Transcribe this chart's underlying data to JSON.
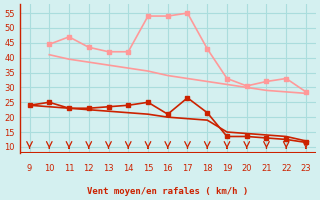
{
  "x_all": [
    9,
    10,
    11,
    12,
    13,
    14,
    15,
    16,
    17,
    18,
    19,
    20,
    21,
    22,
    23
  ],
  "x_raf": [
    10,
    11,
    12,
    13,
    14,
    15,
    16,
    17,
    18,
    19,
    20,
    21,
    22,
    23
  ],
  "rafales": [
    44.5,
    47,
    43.5,
    42,
    42,
    54,
    54,
    55,
    43,
    33,
    30.5,
    32,
    33,
    28.5
  ],
  "moyen_line": [
    41,
    39.5,
    38.5,
    37.5,
    36.5,
    35.5,
    34,
    33,
    32,
    31,
    30,
    29,
    28.5,
    28
  ],
  "vent_moyen": [
    24,
    25,
    23,
    23,
    23.5,
    24,
    25,
    21,
    26.5,
    21.5,
    13.5,
    13.5,
    13,
    12.5,
    11.5
  ],
  "vent_line": [
    24,
    23.5,
    23,
    22.5,
    22,
    21.5,
    21,
    20,
    19.5,
    19,
    15,
    14.5,
    14,
    13.5,
    12
  ],
  "bg_color": "#d4f0f0",
  "grid_color": "#aadddd",
  "line_color_dark": "#cc2200",
  "line_color_light": "#ff9999",
  "xlabel": "Vent moyen/en rafales ( km/h )",
  "ylim": [
    8,
    58
  ],
  "xlim": [
    8.5,
    23.5
  ],
  "yticks": [
    10,
    15,
    20,
    25,
    30,
    35,
    40,
    45,
    50,
    55
  ],
  "xticks": [
    9,
    10,
    11,
    12,
    13,
    14,
    15,
    16,
    17,
    18,
    19,
    20,
    21,
    22,
    23
  ]
}
